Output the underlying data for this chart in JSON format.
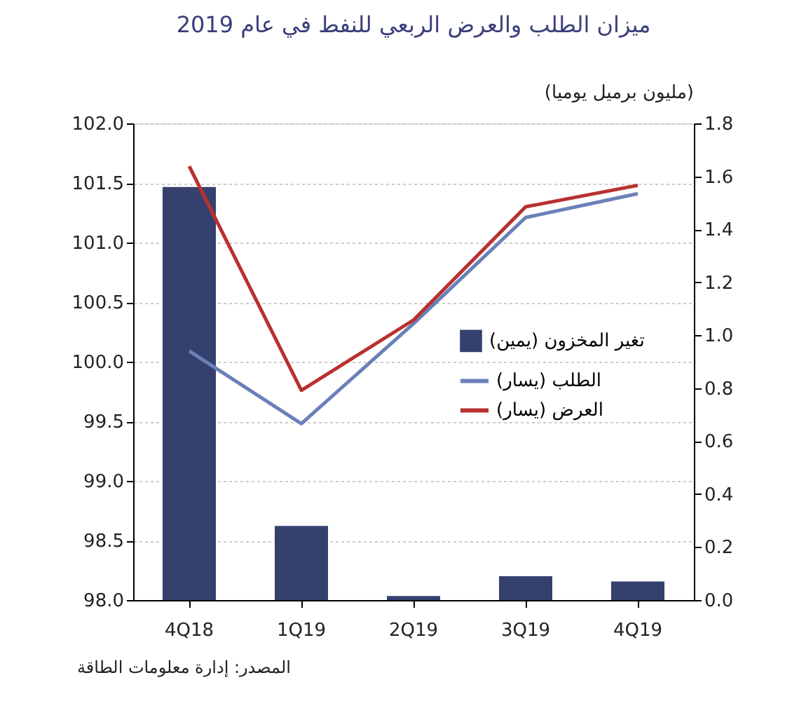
{
  "chart_data": {
    "type": "bar",
    "title": "ميزان الطلب والعرض الربعي للنفط في عام 2019",
    "y2label": "(مليون برميل يوميا)",
    "categories": [
      "4Q18",
      "1Q19",
      "2Q19",
      "3Q19",
      "4Q19"
    ],
    "series": [
      {
        "name": "تغير المخزون (يمين)",
        "axis": "y2",
        "color": "#35406f",
        "values": [
          1.56,
          0.28,
          0.015,
          0.09,
          0.07
        ]
      },
      {
        "name": "الطلب  (يسار)",
        "type": "line",
        "color": "#6a80b8",
        "values": [
          100.09,
          99.48,
          100.32,
          101.21,
          101.41
        ]
      },
      {
        "name": "العرض (يسار)",
        "type": "line",
        "color": "#b8312f",
        "values": [
          101.64,
          99.76,
          100.35,
          101.3,
          101.48
        ]
      }
    ],
    "ylim": [
      98.0,
      102.0
    ],
    "yticks": [
      {
        "value": 98,
        "label": "98.0"
      },
      98.5,
      {
        "value": 99,
        "label": "99.0"
      },
      99.5,
      {
        "value": 100,
        "label": "100.0"
      },
      100.5,
      {
        "value": 101,
        "label": "101.0"
      },
      101.5,
      {
        "value": 102,
        "label": "102.0"
      }
    ],
    "y2lim": [
      0,
      1.8
    ],
    "y2ticks": [
      {
        "value": 0,
        "label": "0.0"
      },
      0.2,
      0.4,
      0.6,
      0.8,
      {
        "value": 1,
        "label": "1.0"
      },
      1.2,
      1.4,
      1.6,
      1.8
    ],
    "grid": "y",
    "legend": "right",
    "annotations": [
      "المصدر: إدارة معلومات الطاقة"
    ]
  }
}
